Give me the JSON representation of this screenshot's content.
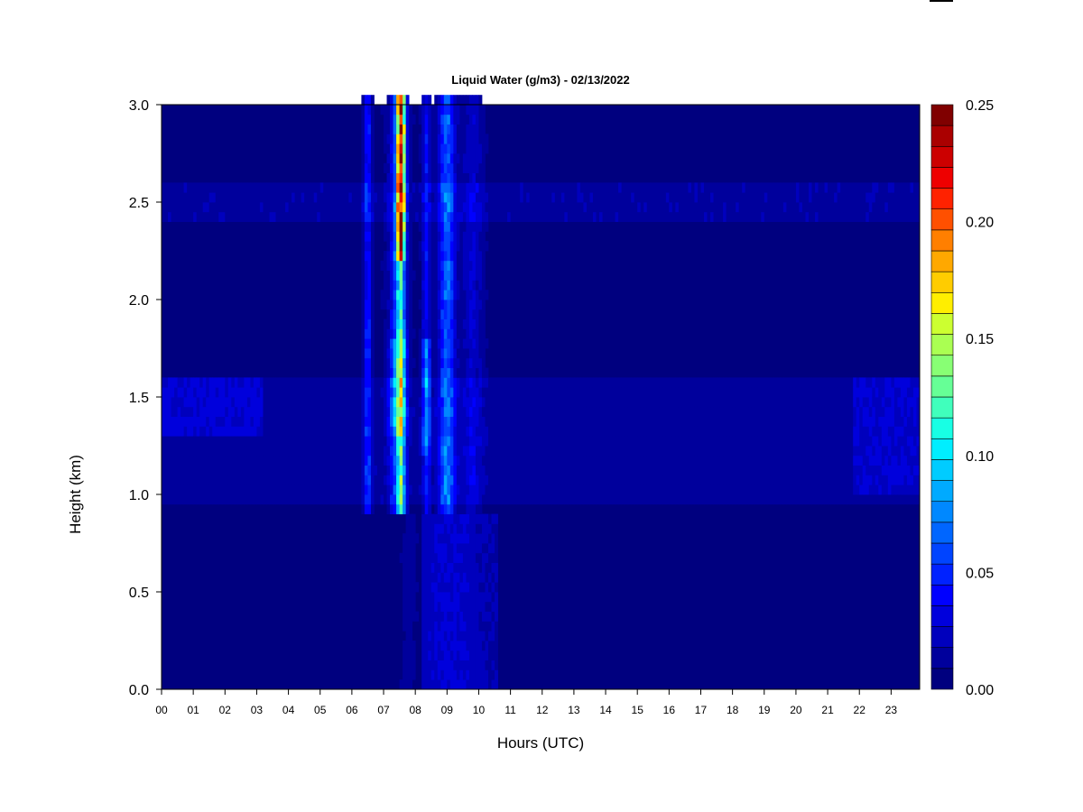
{
  "chart_data": {
    "type": "heatmap",
    "title": "Liquid Water (g/m3) - 02/13/2022",
    "xlabel": "Hours (UTC)",
    "ylabel": "Height (km)",
    "x_tick_labels": [
      "00",
      "01",
      "02",
      "03",
      "04",
      "05",
      "06",
      "07",
      "08",
      "09",
      "10",
      "11",
      "12",
      "13",
      "14",
      "15",
      "16",
      "17",
      "18",
      "19",
      "20",
      "21",
      "22",
      "23"
    ],
    "x_range": [
      0,
      23.9
    ],
    "y_ticks": [
      0.0,
      0.5,
      1.0,
      1.5,
      2.0,
      2.5,
      3.0
    ],
    "y_tick_labels": [
      "0.0",
      "0.5",
      "1.0",
      "1.5",
      "2.0",
      "2.5",
      "3.0"
    ],
    "y_range": [
      0,
      3.0
    ],
    "colorbar": {
      "ticks": [
        0.0,
        0.05,
        0.1,
        0.15,
        0.2,
        0.25
      ],
      "tick_labels": [
        "0.00",
        "0.05",
        "0.10",
        "0.15",
        "0.20",
        "0.25"
      ],
      "range": [
        0,
        0.25
      ],
      "levels": 25,
      "colors": [
        "#00007f",
        "#00009c",
        "#0000bd",
        "#0000dc",
        "#0000ff",
        "#0022ff",
        "#0044ff",
        "#0066ff",
        "#0088ff",
        "#00aaff",
        "#00ccff",
        "#00eeff",
        "#18ffe4",
        "#40ffbc",
        "#66ff96",
        "#88ff74",
        "#aaff52",
        "#ccff30",
        "#ffee00",
        "#ffcc00",
        "#ffa800",
        "#ff7f00",
        "#ff5000",
        "#ff2200",
        "#ee0000",
        "#cc0000",
        "#aa0000",
        "#800000"
      ]
    },
    "x_hours": [
      0,
      0.5,
      1,
      1.5,
      2,
      2.5,
      3,
      3.5,
      4,
      4.5,
      5,
      5.5,
      6,
      6.5,
      7,
      7.25,
      7.5,
      7.75,
      8,
      8.25,
      8.5,
      9,
      9.5,
      10,
      10.5,
      11,
      11.5,
      12,
      12.5,
      13,
      13.5,
      14,
      14.5,
      15,
      15.5,
      16,
      16.5,
      17,
      17.5,
      18,
      18.5,
      19,
      19.5,
      20,
      20.5,
      21,
      21.5,
      22,
      22.5,
      23,
      23.5
    ],
    "y_heights": [
      0.05,
      0.15,
      0.25,
      0.35,
      0.45,
      0.55,
      0.65,
      0.75,
      0.85,
      0.95,
      1.05,
      1.15,
      1.25,
      1.35,
      1.45,
      1.55,
      1.65,
      1.75,
      1.85,
      1.95,
      2.05,
      2.15,
      2.25,
      2.35,
      2.45,
      2.55,
      2.65,
      2.75,
      2.85,
      2.95
    ],
    "note_units": "g/m3"
  },
  "colors": {
    "background": "#ffffff",
    "frame": "#000000"
  }
}
